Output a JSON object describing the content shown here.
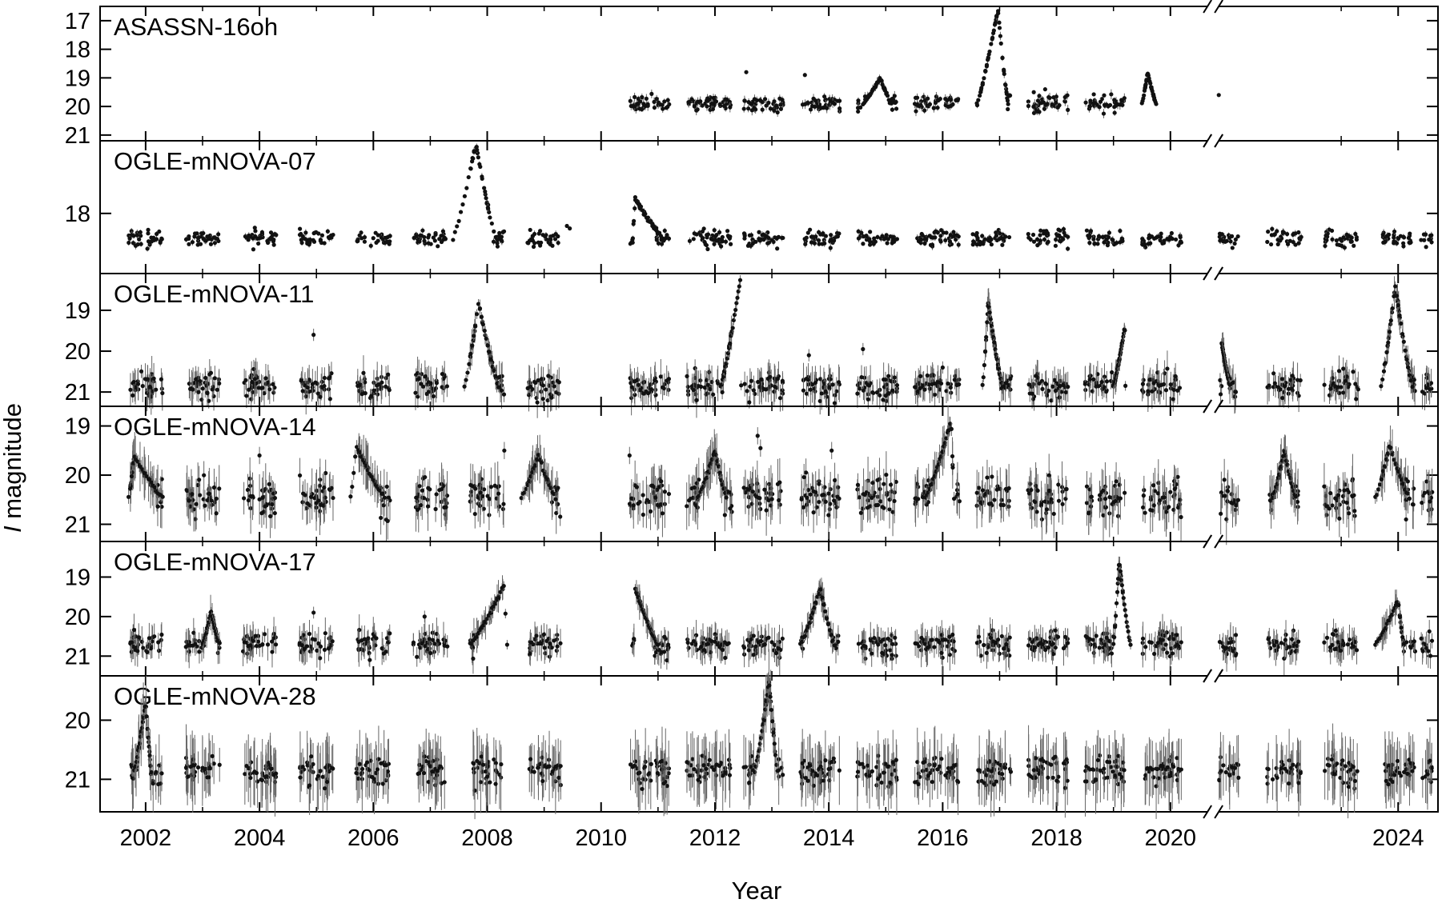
{
  "chart_data": {
    "type": "scatter",
    "xlabel": "Year",
    "ylabel_italic": "I",
    "ylabel_rest": " magnitude",
    "xlim": [
      2001.2,
      2024.7
    ],
    "x_axis_break": 2020.75,
    "xticks": [
      2002,
      2004,
      2006,
      2008,
      2010,
      2012,
      2014,
      2016,
      2018,
      2020,
      2024
    ],
    "xtick_labels": [
      "2002",
      "2004",
      "2006",
      "2008",
      "2010",
      "2012",
      "2014",
      "2016",
      "2018",
      "2020",
      "2024"
    ],
    "y_reversed": true,
    "panels": [
      {
        "name": "ASASSN-16oh",
        "ylim": [
          21.2,
          16.5
        ],
        "yticks": [
          17,
          18,
          19,
          20,
          21
        ],
        "ytick_labels": [
          "17",
          "18",
          "19",
          "20",
          "21"
        ],
        "base": 19.9,
        "spread": 0.45,
        "err": 0.12,
        "seasons": [
          [
            2010.5,
            2011.2
          ],
          [
            2011.5,
            2012.3
          ],
          [
            2012.5,
            2013.2
          ],
          [
            2013.5,
            2014.2
          ],
          [
            2014.5,
            2015.2
          ],
          [
            2015.5,
            2016.3
          ],
          [
            2016.6,
            2017.2
          ],
          [
            2017.5,
            2018.2
          ],
          [
            2018.5,
            2019.2
          ],
          [
            2019.5,
            2019.75
          ]
        ],
        "outbursts": [
          {
            "t_start": 2016.6,
            "t_peak": 2016.97,
            "t_end": 2017.15,
            "peak_mag": 16.6
          },
          {
            "t_start": 2014.6,
            "t_peak": 2014.9,
            "t_end": 2015.1,
            "peak_mag": 19.0
          },
          {
            "t_start": 2019.5,
            "t_peak": 2019.6,
            "t_end": 2019.75,
            "peak_mag": 18.8
          }
        ],
        "extra_points": [
          [
            2012.55,
            18.8
          ],
          [
            2013.58,
            18.9
          ],
          [
            2020.85,
            19.6
          ],
          [
            2017.8,
            19.4
          ],
          [
            2017.6,
            19.5
          ]
        ]
      },
      {
        "name": "OGLE-mNOVA-07",
        "ylim": [
          19.2,
          16.55
        ],
        "yticks": [
          18
        ],
        "ytick_labels": [
          "18"
        ],
        "base": 18.5,
        "spread": 0.25,
        "err": 0.05,
        "seasons": [
          [
            2001.7,
            2002.3
          ],
          [
            2002.7,
            2003.3
          ],
          [
            2003.7,
            2004.3
          ],
          [
            2004.7,
            2005.3
          ],
          [
            2005.7,
            2006.3
          ],
          [
            2006.7,
            2007.3
          ],
          [
            2007.7,
            2008.3
          ],
          [
            2008.7,
            2009.3
          ],
          [
            2010.5,
            2011.2
          ],
          [
            2011.5,
            2012.3
          ],
          [
            2012.5,
            2013.2
          ],
          [
            2013.5,
            2014.2
          ],
          [
            2014.5,
            2015.2
          ],
          [
            2015.5,
            2016.3
          ],
          [
            2016.5,
            2017.2
          ],
          [
            2017.5,
            2018.2
          ],
          [
            2018.5,
            2019.2
          ],
          [
            2019.5,
            2020.2
          ],
          [
            2020.85,
            2021.2
          ],
          [
            2021.7,
            2022.3
          ],
          [
            2022.7,
            2023.3
          ],
          [
            2023.7,
            2024.3
          ],
          [
            2024.4,
            2024.6
          ]
        ],
        "outbursts": [
          {
            "t_start": 2007.4,
            "t_peak": 2007.8,
            "t_end": 2008.15,
            "peak_mag": 16.6
          },
          {
            "t_start": 2010.55,
            "t_peak": 2010.6,
            "t_end": 2011.1,
            "peak_mag": 17.7
          }
        ],
        "extra_points": [
          [
            2009.4,
            18.25
          ],
          [
            2009.45,
            18.3
          ]
        ]
      },
      {
        "name": "OGLE-mNOVA-11",
        "ylim": [
          21.35,
          18.1
        ],
        "yticks": [
          19,
          20,
          21
        ],
        "ytick_labels": [
          "19",
          "20",
          "21"
        ],
        "base": 20.85,
        "spread": 0.45,
        "err": 0.3,
        "seasons": [
          [
            2001.7,
            2002.3
          ],
          [
            2002.7,
            2003.3
          ],
          [
            2003.7,
            2004.3
          ],
          [
            2004.7,
            2005.3
          ],
          [
            2005.7,
            2006.3
          ],
          [
            2006.7,
            2007.3
          ],
          [
            2007.7,
            2008.3
          ],
          [
            2008.7,
            2009.3
          ],
          [
            2010.5,
            2011.2
          ],
          [
            2011.5,
            2012.3
          ],
          [
            2012.5,
            2013.2
          ],
          [
            2013.5,
            2014.2
          ],
          [
            2014.5,
            2015.2
          ],
          [
            2015.5,
            2016.3
          ],
          [
            2016.6,
            2017.2
          ],
          [
            2017.5,
            2018.2
          ],
          [
            2018.5,
            2019.2
          ],
          [
            2019.5,
            2020.2
          ],
          [
            2020.85,
            2021.2
          ],
          [
            2021.7,
            2022.3
          ],
          [
            2022.7,
            2023.3
          ],
          [
            2023.7,
            2024.3
          ],
          [
            2024.4,
            2024.6
          ]
        ],
        "outbursts": [
          {
            "t_start": 2007.6,
            "t_peak": 2007.85,
            "t_end": 2008.2,
            "peak_mag": 18.8
          },
          {
            "t_start": 2012.1,
            "t_peak": 2012.45,
            "t_end": 2012.46,
            "peak_mag": 18.2
          },
          {
            "t_start": 2016.7,
            "t_peak": 2016.8,
            "t_end": 2017.05,
            "peak_mag": 18.8
          },
          {
            "t_start": 2019.0,
            "t_peak": 2019.2,
            "t_end": 2019.21,
            "peak_mag": 19.4
          },
          {
            "t_start": 2023.7,
            "t_peak": 2023.95,
            "t_end": 2024.25,
            "peak_mag": 18.4
          },
          {
            "t_start": 2020.9,
            "t_peak": 2020.9,
            "t_end": 2021.05,
            "peak_mag": 19.8
          }
        ],
        "extra_points": [
          [
            2004.95,
            19.6
          ],
          [
            2014.6,
            19.95
          ],
          [
            2013.65,
            20.1
          ],
          [
            2016.0,
            20.4
          ]
        ]
      },
      {
        "name": "OGLE-mNOVA-14",
        "ylim": [
          21.35,
          18.6
        ],
        "yticks": [
          19,
          20,
          21
        ],
        "ytick_labels": [
          "19",
          "20",
          "21"
        ],
        "base": 20.45,
        "spread": 0.55,
        "err": 0.35,
        "seasons": [
          [
            2001.7,
            2002.3
          ],
          [
            2002.7,
            2003.3
          ],
          [
            2003.7,
            2004.3
          ],
          [
            2004.7,
            2005.3
          ],
          [
            2005.7,
            2006.3
          ],
          [
            2006.7,
            2007.3
          ],
          [
            2007.7,
            2008.3
          ],
          [
            2008.7,
            2009.3
          ],
          [
            2010.5,
            2011.2
          ],
          [
            2011.5,
            2012.3
          ],
          [
            2012.5,
            2013.2
          ],
          [
            2013.5,
            2014.2
          ],
          [
            2014.5,
            2015.2
          ],
          [
            2015.5,
            2016.3
          ],
          [
            2016.6,
            2017.2
          ],
          [
            2017.5,
            2018.2
          ],
          [
            2018.5,
            2019.2
          ],
          [
            2019.5,
            2020.2
          ],
          [
            2020.85,
            2021.2
          ],
          [
            2021.7,
            2022.3
          ],
          [
            2022.7,
            2023.3
          ],
          [
            2023.7,
            2024.3
          ],
          [
            2024.4,
            2024.6
          ]
        ],
        "outbursts": [
          {
            "t_start": 2015.7,
            "t_peak": 2016.15,
            "t_end": 2016.2,
            "peak_mag": 18.9
          },
          {
            "t_start": 2011.7,
            "t_peak": 2012.0,
            "t_end": 2012.2,
            "peak_mag": 19.5
          },
          {
            "t_start": 2001.7,
            "t_peak": 2001.8,
            "t_end": 2002.3,
            "peak_mag": 19.6
          },
          {
            "t_start": 2005.6,
            "t_peak": 2005.7,
            "t_end": 2006.2,
            "peak_mag": 19.4
          },
          {
            "t_start": 2008.6,
            "t_peak": 2008.9,
            "t_end": 2009.2,
            "peak_mag": 19.6
          },
          {
            "t_start": 2021.8,
            "t_peak": 2022.0,
            "t_end": 2022.2,
            "peak_mag": 19.5
          },
          {
            "t_start": 2023.6,
            "t_peak": 2023.85,
            "t_end": 2024.2,
            "peak_mag": 19.4
          }
        ],
        "extra_points": [
          [
            2004.0,
            19.6
          ],
          [
            2012.75,
            19.2
          ],
          [
            2012.8,
            19.45
          ],
          [
            2008.3,
            19.5
          ],
          [
            2014.05,
            19.5
          ],
          [
            2010.5,
            19.6
          ]
        ]
      },
      {
        "name": "OGLE-mNOVA-17",
        "ylim": [
          21.5,
          18.1
        ],
        "yticks": [
          19,
          20,
          21
        ],
        "ytick_labels": [
          "19",
          "20",
          "21"
        ],
        "base": 20.7,
        "spread": 0.45,
        "err": 0.3,
        "seasons": [
          [
            2001.7,
            2002.3
          ],
          [
            2002.7,
            2003.3
          ],
          [
            2003.7,
            2004.3
          ],
          [
            2004.7,
            2005.3
          ],
          [
            2005.7,
            2006.3
          ],
          [
            2006.7,
            2007.3
          ],
          [
            2007.7,
            2008.3
          ],
          [
            2008.7,
            2009.3
          ],
          [
            2010.5,
            2011.2
          ],
          [
            2011.5,
            2012.3
          ],
          [
            2012.5,
            2013.2
          ],
          [
            2013.5,
            2014.2
          ],
          [
            2014.5,
            2015.2
          ],
          [
            2015.5,
            2016.3
          ],
          [
            2016.6,
            2017.2
          ],
          [
            2017.5,
            2018.2
          ],
          [
            2018.5,
            2019.2
          ],
          [
            2019.5,
            2020.2
          ],
          [
            2020.85,
            2021.2
          ],
          [
            2021.7,
            2022.3
          ],
          [
            2022.7,
            2023.3
          ],
          [
            2023.7,
            2024.3
          ],
          [
            2024.4,
            2024.6
          ]
        ],
        "outbursts": [
          {
            "t_start": 2007.7,
            "t_peak": 2008.3,
            "t_end": 2008.35,
            "peak_mag": 19.2
          },
          {
            "t_start": 2010.6,
            "t_peak": 2010.6,
            "t_end": 2011.0,
            "peak_mag": 19.3
          },
          {
            "t_start": 2013.5,
            "t_peak": 2013.85,
            "t_end": 2014.1,
            "peak_mag": 19.3
          },
          {
            "t_start": 2019.0,
            "t_peak": 2019.1,
            "t_end": 2019.3,
            "peak_mag": 18.6
          },
          {
            "t_start": 2023.6,
            "t_peak": 2024.0,
            "t_end": 2024.1,
            "peak_mag": 19.6
          },
          {
            "t_start": 2003.0,
            "t_peak": 2003.15,
            "t_end": 2003.3,
            "peak_mag": 19.9
          }
        ],
        "extra_points": [
          [
            2006.9,
            20.0
          ],
          [
            2004.95,
            19.9
          ]
        ]
      },
      {
        "name": "OGLE-mNOVA-28",
        "ylim": [
          21.55,
          19.25
        ],
        "yticks": [
          20,
          21
        ],
        "ytick_labels": [
          "20",
          "21"
        ],
        "base": 20.85,
        "spread": 0.35,
        "err": 0.4,
        "seasons": [
          [
            2001.7,
            2002.3
          ],
          [
            2002.7,
            2003.3
          ],
          [
            2003.7,
            2004.3
          ],
          [
            2004.7,
            2005.3
          ],
          [
            2005.7,
            2006.3
          ],
          [
            2006.7,
            2007.3
          ],
          [
            2007.7,
            2008.3
          ],
          [
            2008.7,
            2009.3
          ],
          [
            2010.5,
            2011.2
          ],
          [
            2011.5,
            2012.3
          ],
          [
            2012.5,
            2013.2
          ],
          [
            2013.5,
            2014.2
          ],
          [
            2014.5,
            2015.2
          ],
          [
            2015.5,
            2016.3
          ],
          [
            2016.6,
            2017.2
          ],
          [
            2017.5,
            2018.2
          ],
          [
            2018.5,
            2019.2
          ],
          [
            2019.5,
            2020.2
          ],
          [
            2020.85,
            2021.2
          ],
          [
            2021.7,
            2022.3
          ],
          [
            2022.7,
            2023.3
          ],
          [
            2023.7,
            2024.3
          ],
          [
            2024.4,
            2024.6
          ]
        ],
        "outbursts": [
          {
            "t_start": 2001.8,
            "t_peak": 2002.0,
            "t_end": 2002.1,
            "peak_mag": 19.7
          },
          {
            "t_start": 2012.7,
            "t_peak": 2012.95,
            "t_end": 2013.1,
            "peak_mag": 19.35
          }
        ],
        "extra_points": []
      }
    ]
  }
}
